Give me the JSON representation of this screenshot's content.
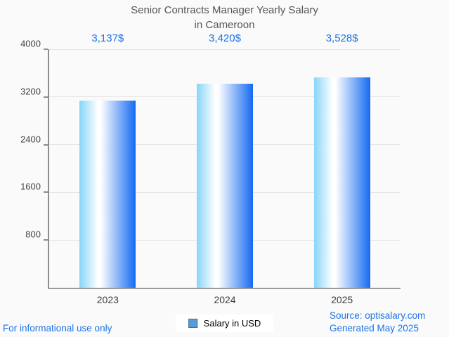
{
  "title": {
    "line1": "Senior Contracts Manager Yearly Salary",
    "line2": "in Cameroon"
  },
  "chart_data": {
    "type": "bar",
    "title": "Senior Contracts Manager Yearly Salary in Cameroon",
    "categories": [
      "2023",
      "2024",
      "2025"
    ],
    "values": [
      3137,
      3420,
      3528
    ],
    "value_labels": [
      "3,137$",
      "3,420$",
      "3,528$"
    ],
    "xlabel": "",
    "ylabel": "",
    "ylim": [
      0,
      4000
    ],
    "yticks": [
      4000,
      3200,
      2400,
      1600,
      800
    ],
    "grid": true,
    "legend": {
      "position": "bottom",
      "entries": [
        "Salary in USD"
      ]
    }
  },
  "colors": {
    "value_label_blue": "#1a73e8",
    "bar_gradient_left": "#87d5f8",
    "bar_gradient_mid": "#ffffff",
    "bar_gradient_right": "#156af2",
    "legend_swatch_fill": "#5b9bd5",
    "legend_swatch_border": "#41719c",
    "axis_gray": "#8c8c8c",
    "grid_gray": "#e4e4e4",
    "title_gray": "#555555"
  },
  "footer": {
    "disclaimer": "For informational use only",
    "source": "Source: optisalary.com",
    "generated": "Generated May 2025"
  }
}
